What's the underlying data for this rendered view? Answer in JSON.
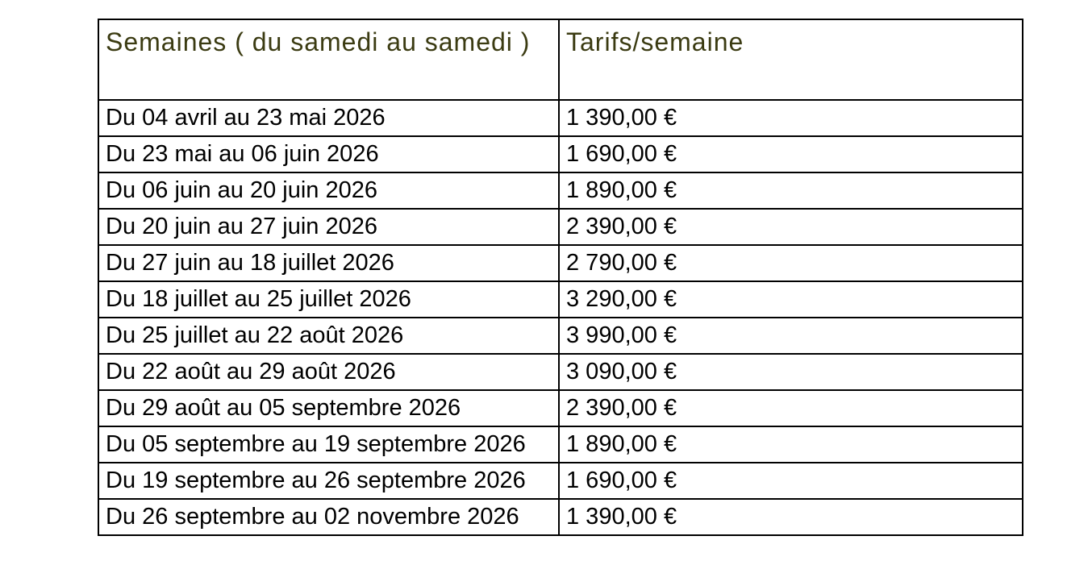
{
  "table": {
    "headers": {
      "weeks": "Semaines ( du samedi au samedi )",
      "price": "Tarifs/semaine"
    },
    "rows": [
      {
        "week": "Du 04 avril au 23 mai 2026",
        "price": "1 390,00 €"
      },
      {
        "week": "Du 23 mai au 06 juin 2026",
        "price": "1 690,00 €"
      },
      {
        "week": "Du 06 juin au 20 juin 2026",
        "price": "1 890,00 €"
      },
      {
        "week": "Du 20 juin au 27 juin 2026",
        "price": "2 390,00 €"
      },
      {
        "week": "Du 27 juin au 18 juillet 2026",
        "price": "2 790,00 €"
      },
      {
        "week": "Du 18 juillet au 25 juillet 2026",
        "price": "3 290,00 €"
      },
      {
        "week": "Du 25 juillet au 22 août 2026",
        "price": "3 990,00 €"
      },
      {
        "week": "Du 22 août au 29 août 2026",
        "price": "3 090,00 €"
      },
      {
        "week": "Du 29 août au 05 septembre 2026",
        "price": "2 390,00 €"
      },
      {
        "week": "Du 05 septembre au 19 septembre 2026",
        "price": "1 890,00 €"
      },
      {
        "week": "Du 19 septembre au 26 septembre 2026",
        "price": "1 690,00 €"
      },
      {
        "week": "Du 26 septembre au 02 novembre 2026",
        "price": "1 390,00 €"
      }
    ],
    "colors": {
      "header_text": "#3b3b12",
      "border": "#000000",
      "body_text": "#000000",
      "background": "#ffffff"
    }
  }
}
